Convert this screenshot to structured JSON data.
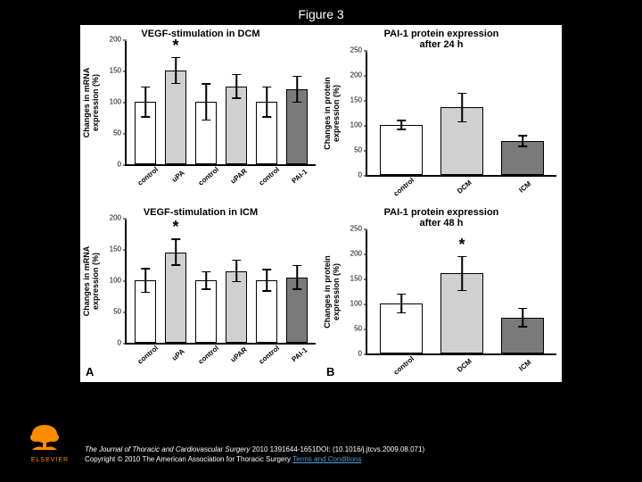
{
  "figure_title": "Figure 3",
  "background_color": "#000000",
  "chart_bg": "#ffffff",
  "bar_border": "#000000",
  "colors": {
    "white": "#ffffff",
    "lightgray": "#d0d0d0",
    "darkgray": "#7a7a7a"
  },
  "panels": {
    "A_top": {
      "title": "VEGF-stimulation in DCM",
      "ylabel": "Changes in mRNA\nexpression (%)",
      "ylim": [
        0,
        200
      ],
      "ytick_step": 50,
      "categories": [
        "control",
        "uPA",
        "control",
        "uPAR",
        "control",
        "PAI-1"
      ],
      "values": [
        100,
        150,
        100,
        125,
        100,
        120
      ],
      "errors": [
        25,
        22,
        30,
        20,
        25,
        22
      ],
      "fills": [
        "white",
        "lightgray",
        "white",
        "lightgray",
        "white",
        "darkgray"
      ],
      "stars": [
        null,
        "*",
        null,
        null,
        null,
        null
      ],
      "panel_label": "A",
      "label_side": "left"
    },
    "A_bottom": {
      "title": "VEGF-stimulation in ICM",
      "ylabel": "Changes in mRNA\nexpression (%)",
      "ylim": [
        0,
        200
      ],
      "ytick_step": 50,
      "categories": [
        "control",
        "uPA",
        "control",
        "uPAR",
        "control",
        "PAI-1"
      ],
      "values": [
        100,
        145,
        100,
        115,
        100,
        105
      ],
      "errors": [
        20,
        22,
        15,
        18,
        18,
        20
      ],
      "fills": [
        "white",
        "lightgray",
        "white",
        "lightgray",
        "white",
        "darkgray"
      ],
      "stars": [
        null,
        "*",
        null,
        null,
        null,
        null
      ]
    },
    "B_top": {
      "title": "PAI-1 protein expression\nafter 24 h",
      "ylabel": "Changes in protein\nexpression (%)",
      "ylim": [
        0,
        250
      ],
      "ytick_step": 50,
      "categories": [
        "control",
        "DCM",
        "ICM"
      ],
      "values": [
        100,
        135,
        68
      ],
      "errors": [
        10,
        30,
        12
      ],
      "fills": [
        "white",
        "lightgray",
        "darkgray"
      ],
      "stars": [
        null,
        null,
        null
      ],
      "panel_label": "B",
      "label_side": "right"
    },
    "B_bottom": {
      "title": "PAI-1 protein expression\nafter 48 h",
      "ylabel": "Changes in protein\nexpression (%)",
      "ylim": [
        0,
        250
      ],
      "ytick_step": 50,
      "categories": [
        "control",
        "DCM",
        "ICM"
      ],
      "values": [
        100,
        160,
        72
      ],
      "errors": [
        20,
        35,
        20
      ],
      "fills": [
        "white",
        "lightgray",
        "darkgray"
      ],
      "stars": [
        null,
        "*",
        null
      ]
    }
  },
  "footer": {
    "line1_ital": "The Journal of Thoracic and Cardiovascular Surgery",
    "line1_rest": " 2010 1391644-1651DOI: (10.1016/j.jtcvs.2009.08.071)",
    "line2_prefix": "Copyright © 2010 The American Association for Thoracic Surgery ",
    "line2_link": "Terms and Conditions"
  },
  "logo_text": "ELSEVIER"
}
